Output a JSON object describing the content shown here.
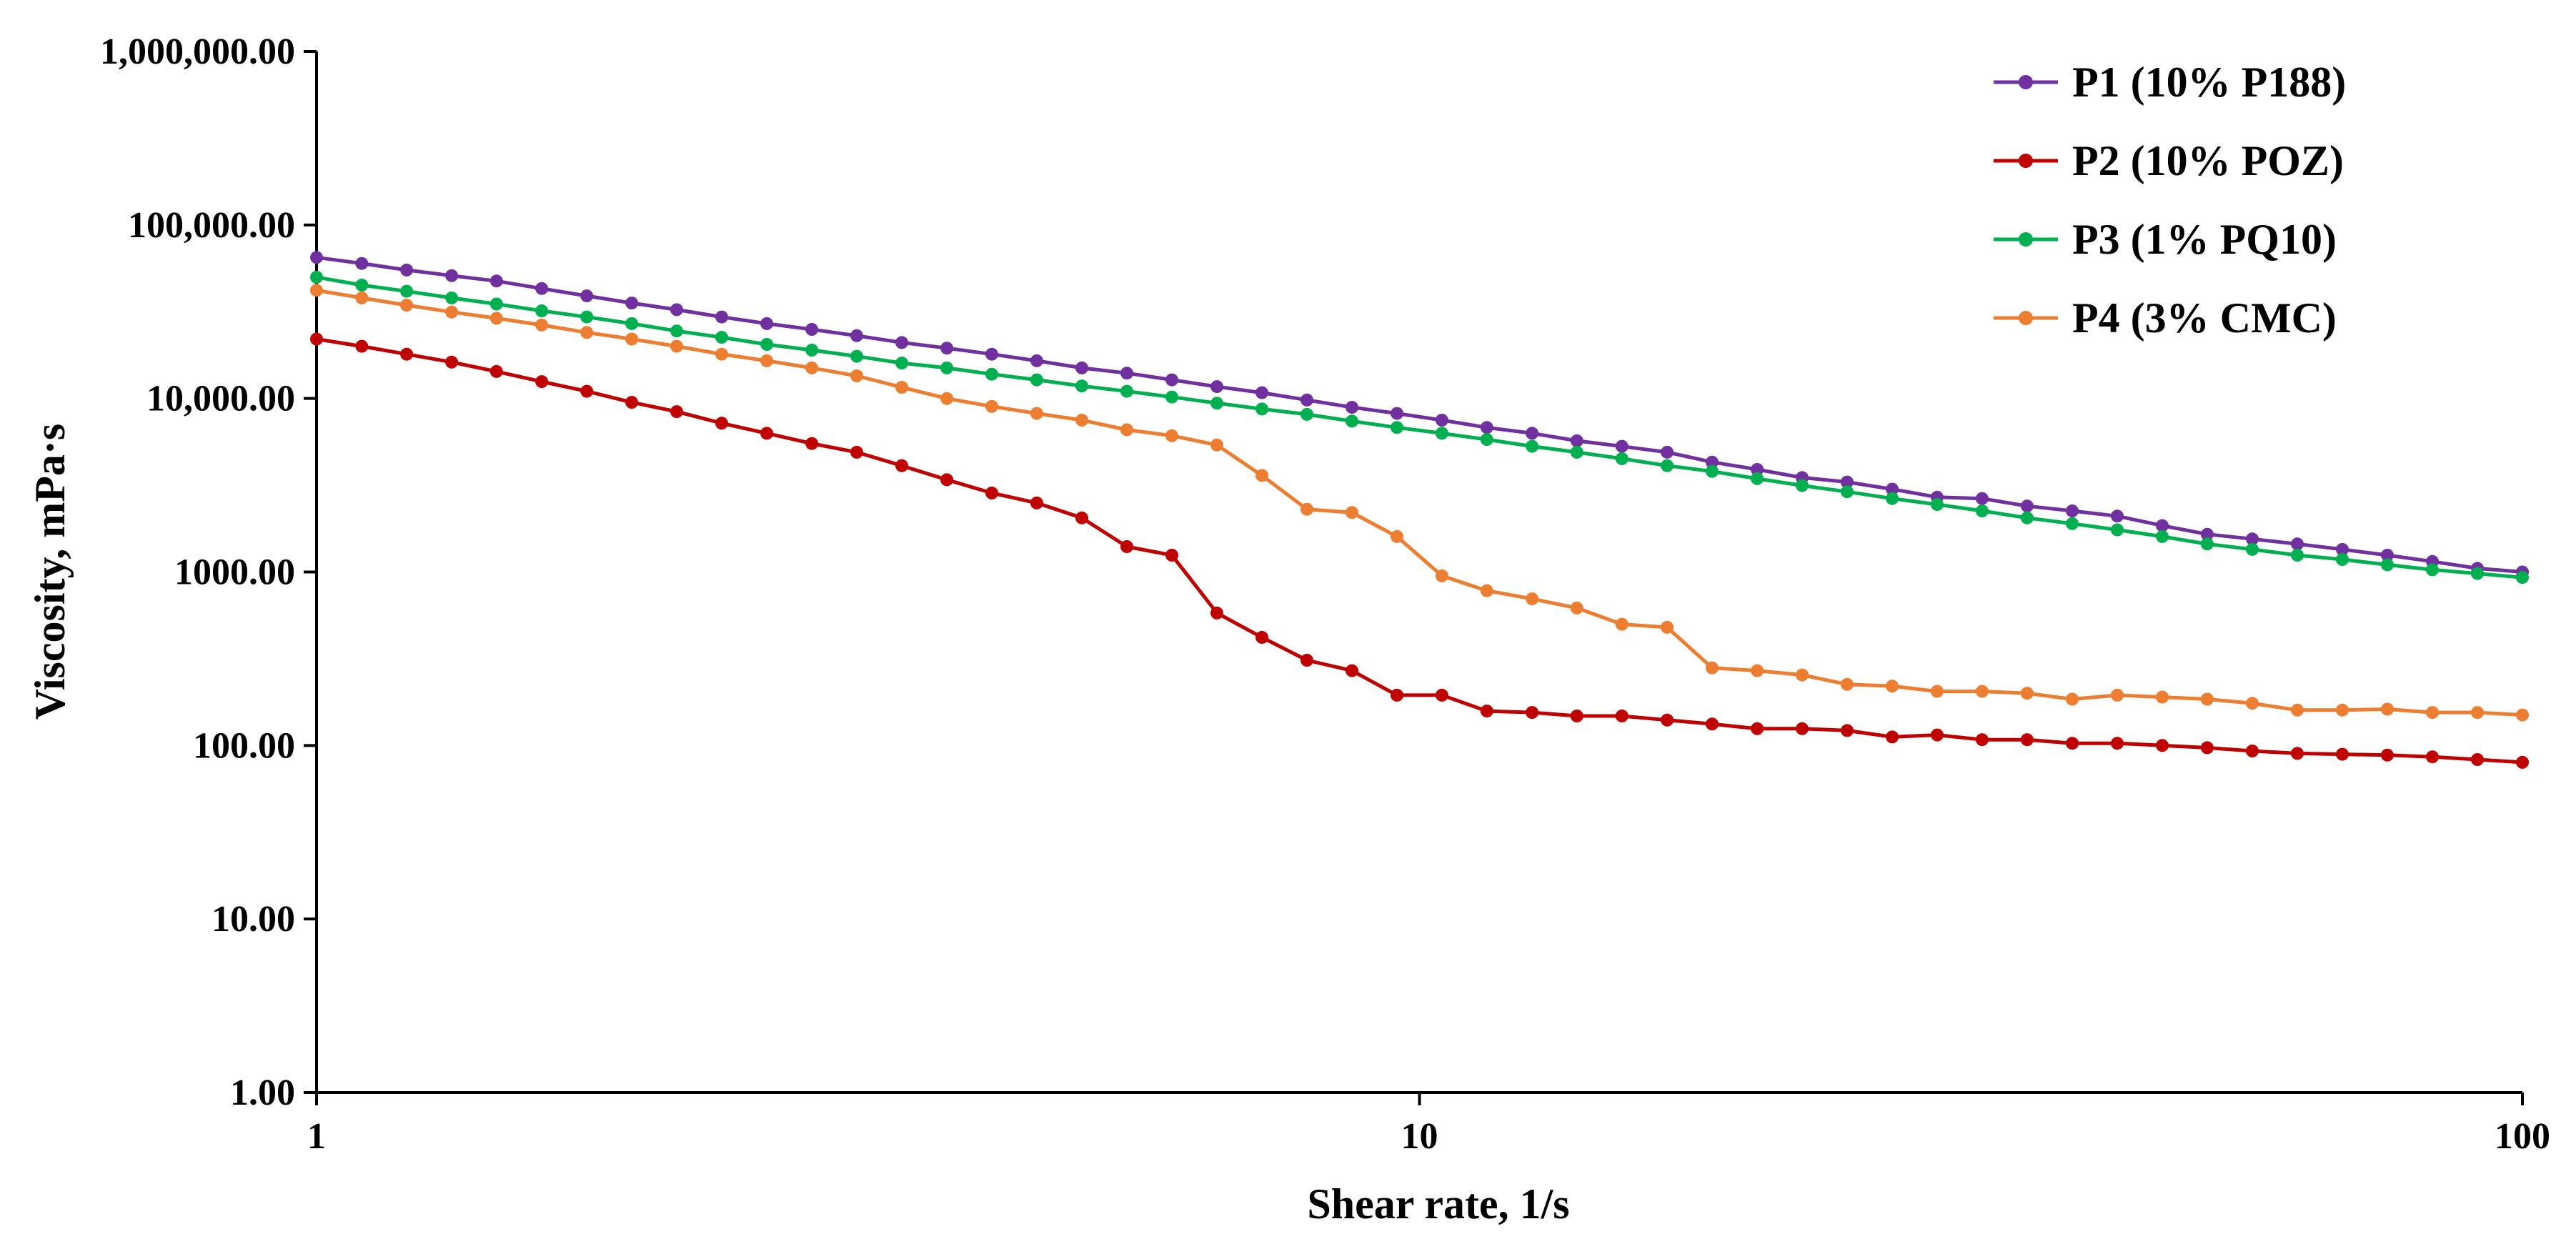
{
  "chart_data": {
    "type": "line",
    "title": "",
    "xlabel": "Shear rate, 1/s",
    "ylabel": "Viscosity, mPa·s",
    "xscale": "log",
    "yscale": "log",
    "xlim": [
      1,
      100
    ],
    "ylim": [
      1,
      1000000
    ],
    "grid": false,
    "legend_position": "top-right",
    "x_ticks": [
      {
        "value": 1,
        "label": "1"
      },
      {
        "value": 10,
        "label": "10"
      },
      {
        "value": 100,
        "label": "100"
      }
    ],
    "y_ticks": [
      {
        "value": 1,
        "label": "1.00"
      },
      {
        "value": 10,
        "label": "10.00"
      },
      {
        "value": 100,
        "label": "100.00"
      },
      {
        "value": 1000,
        "label": "1000.00"
      },
      {
        "value": 10000,
        "label": "10,000.00"
      },
      {
        "value": 100000,
        "label": "100,000.00"
      },
      {
        "value": 1000000,
        "label": "1,000,000.00"
      }
    ],
    "x": [
      1,
      1.099,
      1.207,
      1.326,
      1.456,
      1.6,
      1.758,
      1.931,
      2.121,
      2.33,
      2.56,
      2.812,
      3.089,
      3.393,
      3.728,
      4.095,
      4.498,
      4.942,
      5.429,
      5.964,
      6.551,
      7.197,
      7.906,
      8.685,
      9.541,
      10.48,
      11.51,
      12.65,
      13.89,
      15.26,
      16.77,
      18.42,
      20.24,
      22.23,
      24.42,
      26.83,
      29.47,
      32.37,
      35.56,
      39.07,
      42.92,
      47.15,
      51.79,
      56.9,
      62.51,
      68.66,
      75.43,
      82.86,
      91.03,
      100
    ],
    "series": [
      {
        "name": "P1 (10% P188)",
        "color": "#7030A0",
        "values": [
          65000,
          60000,
          55000,
          51000,
          47500,
          43000,
          39000,
          35500,
          32500,
          29500,
          27000,
          25000,
          23000,
          21000,
          19500,
          18000,
          16500,
          15000,
          14000,
          12800,
          11700,
          10800,
          9800,
          8900,
          8200,
          7500,
          6800,
          6300,
          5700,
          5300,
          4900,
          4300,
          3900,
          3500,
          3300,
          3000,
          2700,
          2650,
          2400,
          2250,
          2100,
          1850,
          1650,
          1550,
          1450,
          1350,
          1250,
          1150,
          1050,
          1000
        ]
      },
      {
        "name": "P2 (10% POZ)",
        "color": "#C00000",
        "values": [
          22000,
          20000,
          18000,
          16200,
          14300,
          12500,
          11000,
          9500,
          8400,
          7200,
          6300,
          5500,
          4900,
          4100,
          3400,
          2850,
          2500,
          2050,
          1400,
          1250,
          580,
          420,
          310,
          270,
          195,
          195,
          158,
          155,
          148,
          148,
          140,
          133,
          125,
          125,
          122,
          112,
          115,
          108,
          108,
          103,
          103,
          100,
          97,
          93,
          90,
          89,
          88,
          86,
          83,
          80
        ]
      },
      {
        "name": "P3 (1% PQ10)",
        "color": "#00B050",
        "values": [
          50000,
          45000,
          41500,
          38000,
          35000,
          32000,
          29500,
          27000,
          24500,
          22500,
          20500,
          19000,
          17500,
          16000,
          15000,
          13800,
          12800,
          11800,
          11000,
          10200,
          9400,
          8700,
          8100,
          7400,
          6800,
          6300,
          5800,
          5300,
          4900,
          4500,
          4100,
          3800,
          3450,
          3150,
          2900,
          2650,
          2450,
          2250,
          2050,
          1900,
          1750,
          1600,
          1450,
          1350,
          1250,
          1180,
          1100,
          1030,
          980,
          930
        ]
      },
      {
        "name": "P4 (3% CMC)",
        "color": "#ED7D31",
        "values": [
          42000,
          38000,
          34500,
          31500,
          29000,
          26500,
          24000,
          22000,
          20000,
          18000,
          16500,
          15000,
          13500,
          11600,
          10000,
          9000,
          8200,
          7500,
          6600,
          6100,
          5400,
          3600,
          2300,
          2200,
          1600,
          950,
          780,
          700,
          620,
          500,
          480,
          280,
          270,
          255,
          225,
          220,
          205,
          205,
          200,
          185,
          195,
          190,
          185,
          175,
          160,
          160,
          162,
          155,
          155,
          150
        ]
      }
    ]
  }
}
